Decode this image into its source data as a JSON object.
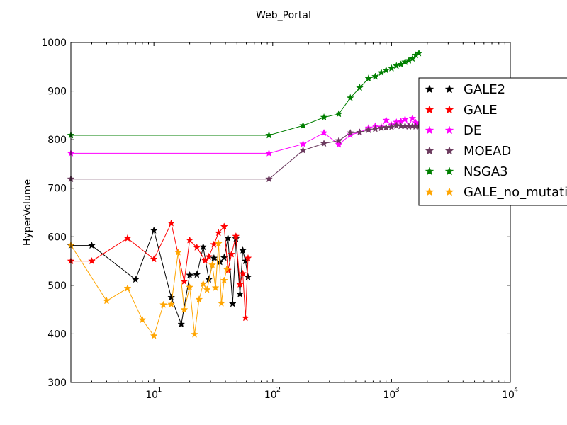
{
  "chart_data": {
    "type": "line",
    "title": "Web_Portal",
    "xlabel": "",
    "ylabel": "HyperVolume",
    "xscale": "log",
    "xlim": [
      2,
      10000
    ],
    "ylim": [
      300,
      1000
    ],
    "yticks": [
      300,
      400,
      500,
      600,
      700,
      800,
      900,
      1000
    ],
    "xticks": [
      {
        "value": 10,
        "base": "10",
        "exp": "1"
      },
      {
        "value": 100,
        "base": "10",
        "exp": "2"
      },
      {
        "value": 1000,
        "base": "10",
        "exp": "3"
      },
      {
        "value": 10000,
        "base": "10",
        "exp": "4"
      }
    ],
    "grid": false,
    "legend_position": "right, overlapping plot edge",
    "marker": "star",
    "series": [
      {
        "name": "GALE2",
        "color": "#000000",
        "points": [
          [
            2,
            582
          ],
          [
            3,
            582
          ],
          [
            7,
            512
          ],
          [
            10,
            613
          ],
          [
            14,
            475
          ],
          [
            17,
            420
          ],
          [
            20,
            521
          ],
          [
            23,
            522
          ],
          [
            26,
            579
          ],
          [
            29,
            512
          ],
          [
            32,
            556
          ],
          [
            36,
            548
          ],
          [
            39,
            557
          ],
          [
            42,
            597
          ],
          [
            46,
            462
          ],
          [
            49,
            596
          ],
          [
            53,
            482
          ],
          [
            56,
            572
          ],
          [
            59,
            550
          ],
          [
            62,
            517
          ]
        ]
      },
      {
        "name": "GALE",
        "color": "#ff0000",
        "points": [
          [
            2,
            550
          ],
          [
            3,
            550
          ],
          [
            6,
            597
          ],
          [
            10,
            554
          ],
          [
            14,
            628
          ],
          [
            18,
            508
          ],
          [
            20,
            593
          ],
          [
            23,
            578
          ],
          [
            27,
            551
          ],
          [
            29,
            559
          ],
          [
            32,
            584
          ],
          [
            35,
            608
          ],
          [
            39,
            621
          ],
          [
            42,
            531
          ],
          [
            45,
            564
          ],
          [
            49,
            601
          ],
          [
            53,
            502
          ],
          [
            56,
            524
          ],
          [
            59,
            433
          ],
          [
            62,
            556
          ]
        ]
      },
      {
        "name": "DE",
        "color": "#ff00ff",
        "points": [
          [
            2,
            772
          ],
          [
            93,
            772
          ],
          [
            180,
            791
          ],
          [
            270,
            814
          ],
          [
            360,
            790
          ],
          [
            450,
            810
          ],
          [
            540,
            815
          ],
          [
            640,
            824
          ],
          [
            730,
            828
          ],
          [
            820,
            826
          ],
          [
            900,
            840
          ],
          [
            1000,
            830
          ],
          [
            1100,
            836
          ],
          [
            1200,
            838
          ],
          [
            1300,
            842
          ],
          [
            1400,
            828
          ],
          [
            1500,
            844
          ],
          [
            1600,
            835
          ],
          [
            1700,
            832
          ]
        ]
      },
      {
        "name": "MOEAD",
        "color": "#6b3a5e",
        "points": [
          [
            2,
            719
          ],
          [
            93,
            719
          ],
          [
            180,
            778
          ],
          [
            270,
            792
          ],
          [
            360,
            798
          ],
          [
            450,
            814
          ],
          [
            540,
            815
          ],
          [
            640,
            820
          ],
          [
            730,
            822
          ],
          [
            820,
            824
          ],
          [
            900,
            825
          ],
          [
            1000,
            826
          ],
          [
            1100,
            829
          ],
          [
            1200,
            828
          ],
          [
            1300,
            828
          ],
          [
            1400,
            827
          ],
          [
            1500,
            828
          ],
          [
            1600,
            827
          ],
          [
            1700,
            827
          ]
        ]
      },
      {
        "name": "NSGA3",
        "color": "#007f00",
        "points": [
          [
            2,
            809
          ],
          [
            93,
            809
          ],
          [
            180,
            829
          ],
          [
            270,
            846
          ],
          [
            360,
            853
          ],
          [
            450,
            886
          ],
          [
            540,
            907
          ],
          [
            640,
            926
          ],
          [
            730,
            930
          ],
          [
            820,
            938
          ],
          [
            900,
            943
          ],
          [
            1000,
            947
          ],
          [
            1100,
            952
          ],
          [
            1200,
            955
          ],
          [
            1300,
            960
          ],
          [
            1400,
            963
          ],
          [
            1500,
            967
          ],
          [
            1600,
            974
          ],
          [
            1700,
            978
          ]
        ]
      },
      {
        "name": "GALE_no_mutation",
        "color": "#ffa500",
        "points": [
          [
            2,
            583
          ],
          [
            4,
            468
          ],
          [
            6,
            494
          ],
          [
            8,
            429
          ],
          [
            10,
            396
          ],
          [
            12,
            460
          ],
          [
            14,
            461
          ],
          [
            16,
            568
          ],
          [
            18,
            450
          ],
          [
            20,
            496
          ],
          [
            22,
            399
          ],
          [
            24,
            471
          ],
          [
            26,
            503
          ],
          [
            28,
            491
          ],
          [
            31,
            542
          ],
          [
            33,
            495
          ],
          [
            35,
            586
          ],
          [
            37,
            463
          ],
          [
            39,
            510
          ],
          [
            41,
            533
          ]
        ]
      }
    ]
  }
}
